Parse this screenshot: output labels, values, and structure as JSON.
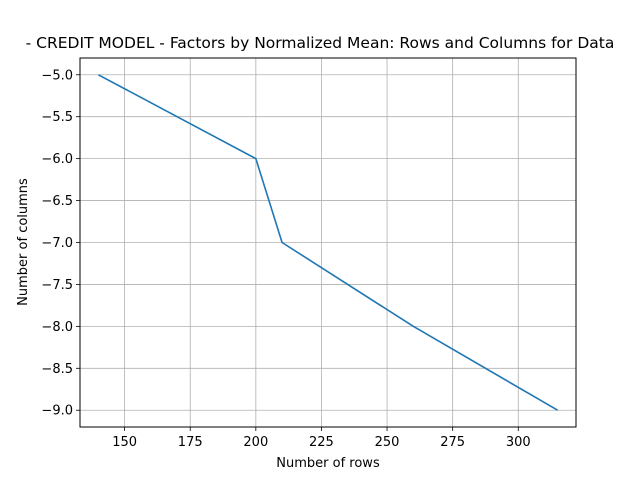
{
  "chart_data": {
    "type": "line",
    "title": "- CREDIT MODEL - Factors by Normalized Mean: Rows and Columns for Data",
    "xlabel": "Number of rows",
    "ylabel": "Number of columns",
    "xlim": [
      133,
      322
    ],
    "ylim": [
      -9.2,
      -4.8
    ],
    "xticks": [
      150,
      175,
      200,
      225,
      250,
      275,
      300
    ],
    "yticks": [
      -5.0,
      -5.5,
      -6.0,
      -6.5,
      -7.0,
      -7.5,
      -8.0,
      -8.5,
      -9.0
    ],
    "grid": true,
    "series": [
      {
        "color": "#1f77b4",
        "x": [
          140,
          200,
          210,
          260,
          315
        ],
        "y": [
          -5.0,
          -6.0,
          -7.0,
          -8.0,
          -9.0
        ]
      }
    ]
  }
}
